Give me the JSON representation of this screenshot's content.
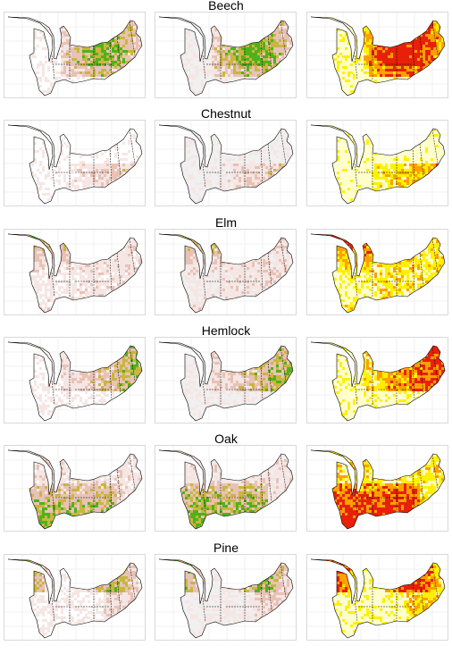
{
  "rows": [
    {
      "title": "Beech"
    },
    {
      "title": "Chestnut"
    },
    {
      "title": "Elm"
    },
    {
      "title": "Hemlock"
    },
    {
      "title": "Oak"
    },
    {
      "title": "Pine"
    }
  ],
  "palette": {
    "empty": "#ffffff",
    "light_gray": "#f0f0f0",
    "pale_pink": "#f5e6e4",
    "tan_pink": "#e8c2b5",
    "olive": "#c9b640",
    "green": "#4fb21a",
    "pale_yellow": "#ffffcc",
    "yellow": "#fff000",
    "orange": "#ffa000",
    "red": "#e8200a",
    "grid": "#e5e5e5",
    "border": "#000000"
  }
}
